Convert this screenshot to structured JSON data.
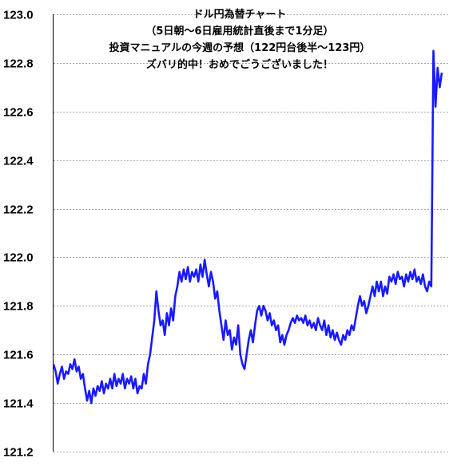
{
  "chart_data": {
    "type": "line",
    "title_lines": [
      "ドル円為替チャート",
      "（5日朝～6日雇用統計直後まで1分足）",
      "投資マニュアルの今週の予想（122円台後半～123円）",
      "ズバリ的中！おめでごうございました！"
    ],
    "xlabel": "",
    "ylabel": "",
    "ylim": [
      121.2,
      123.0
    ],
    "y_ticks": [
      "123.0",
      "122.8",
      "122.6",
      "122.4",
      "122.2",
      "122.0",
      "121.8",
      "121.6",
      "121.4",
      "121.2"
    ],
    "grid": true,
    "legend": "none",
    "colors": {
      "series": "#1a1aff",
      "grid": "#a8a8a8",
      "axis": "#000000"
    },
    "series": [
      {
        "values": [
          121.56,
          121.53,
          121.48,
          121.52,
          121.55,
          121.5,
          121.53,
          121.52,
          121.56,
          121.54,
          121.58,
          121.53,
          121.55,
          121.5,
          121.52,
          121.46,
          121.41,
          121.45,
          121.4,
          121.46,
          121.43,
          121.47,
          121.45,
          121.49,
          121.44,
          121.48,
          121.46,
          121.5,
          121.46,
          121.52,
          121.47,
          121.5,
          121.48,
          121.52,
          121.46,
          121.5,
          121.48,
          121.51,
          121.46,
          121.5,
          121.44,
          121.47,
          121.46,
          121.52,
          121.48,
          121.56,
          121.6,
          121.67,
          121.74,
          121.86,
          121.78,
          121.72,
          121.74,
          121.68,
          121.77,
          121.72,
          121.79,
          121.74,
          121.84,
          121.88,
          121.94,
          121.9,
          121.95,
          121.91,
          121.96,
          121.9,
          121.94,
          121.92,
          121.95,
          121.9,
          121.97,
          121.92,
          121.99,
          121.93,
          121.88,
          121.94,
          121.9,
          121.83,
          121.86,
          121.78,
          121.72,
          121.66,
          121.74,
          121.68,
          121.7,
          121.62,
          121.67,
          121.64,
          121.72,
          121.6,
          121.56,
          121.54,
          121.6,
          121.66,
          121.7,
          121.65,
          121.72,
          121.78,
          121.8,
          121.76,
          121.8,
          121.78,
          121.74,
          121.77,
          121.72,
          121.74,
          121.7,
          121.72,
          121.65,
          121.68,
          121.64,
          121.68,
          121.7,
          121.73,
          121.75,
          121.73,
          121.76,
          121.74,
          121.75,
          121.73,
          121.76,
          121.72,
          121.74,
          121.71,
          121.73,
          121.7,
          121.75,
          121.72,
          121.7,
          121.74,
          121.68,
          121.72,
          121.67,
          121.7,
          121.66,
          121.69,
          121.66,
          121.64,
          121.68,
          121.66,
          121.7,
          121.68,
          121.72,
          121.7,
          121.75,
          121.8,
          121.84,
          121.8,
          121.82,
          121.77,
          121.8,
          121.84,
          121.88,
          121.84,
          121.9,
          121.86,
          121.9,
          121.84,
          121.88,
          121.85,
          121.92,
          121.9,
          121.93,
          121.89,
          121.94,
          121.91,
          121.92,
          121.88,
          121.93,
          121.9,
          121.94,
          121.91,
          121.95,
          121.9,
          121.92,
          121.89,
          121.93,
          121.88,
          121.86,
          121.9,
          121.88,
          122.85,
          122.62,
          122.78,
          122.7,
          122.76
        ]
      }
    ]
  }
}
